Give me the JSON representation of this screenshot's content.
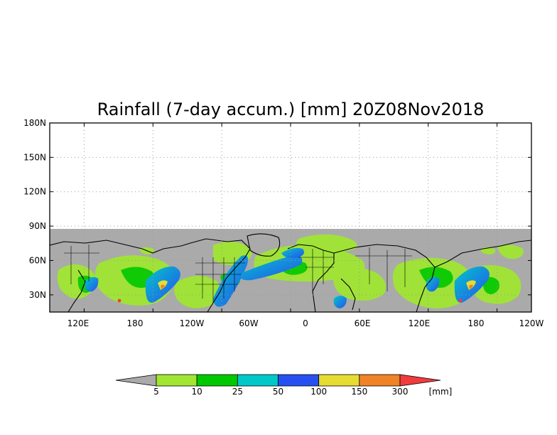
{
  "title": "Rainfall (7-day accum.) [mm] 20Z08Nov2018",
  "map": {
    "lat_labels": [
      "180N",
      "150N",
      "120N",
      "90N",
      "60N",
      "30N"
    ],
    "lon_labels": [
      "120E",
      "180",
      "120W",
      "60W",
      "0",
      "60E",
      "120E",
      "180",
      "120W"
    ],
    "no_data_color": "#aaaaaa",
    "lat_range": [
      15,
      180
    ],
    "lon_range": [
      90,
      510
    ]
  },
  "colorbar": {
    "unit": "[mm]",
    "labels": [
      "5",
      "10",
      "25",
      "50",
      "100",
      "150",
      "300"
    ],
    "colors": [
      "#a0e632",
      "#00c800",
      "#00c8c8",
      "#2850f0",
      "#e6dc32",
      "#f08228",
      "#f03c3c"
    ],
    "below_color": "#aaaaaa"
  }
}
